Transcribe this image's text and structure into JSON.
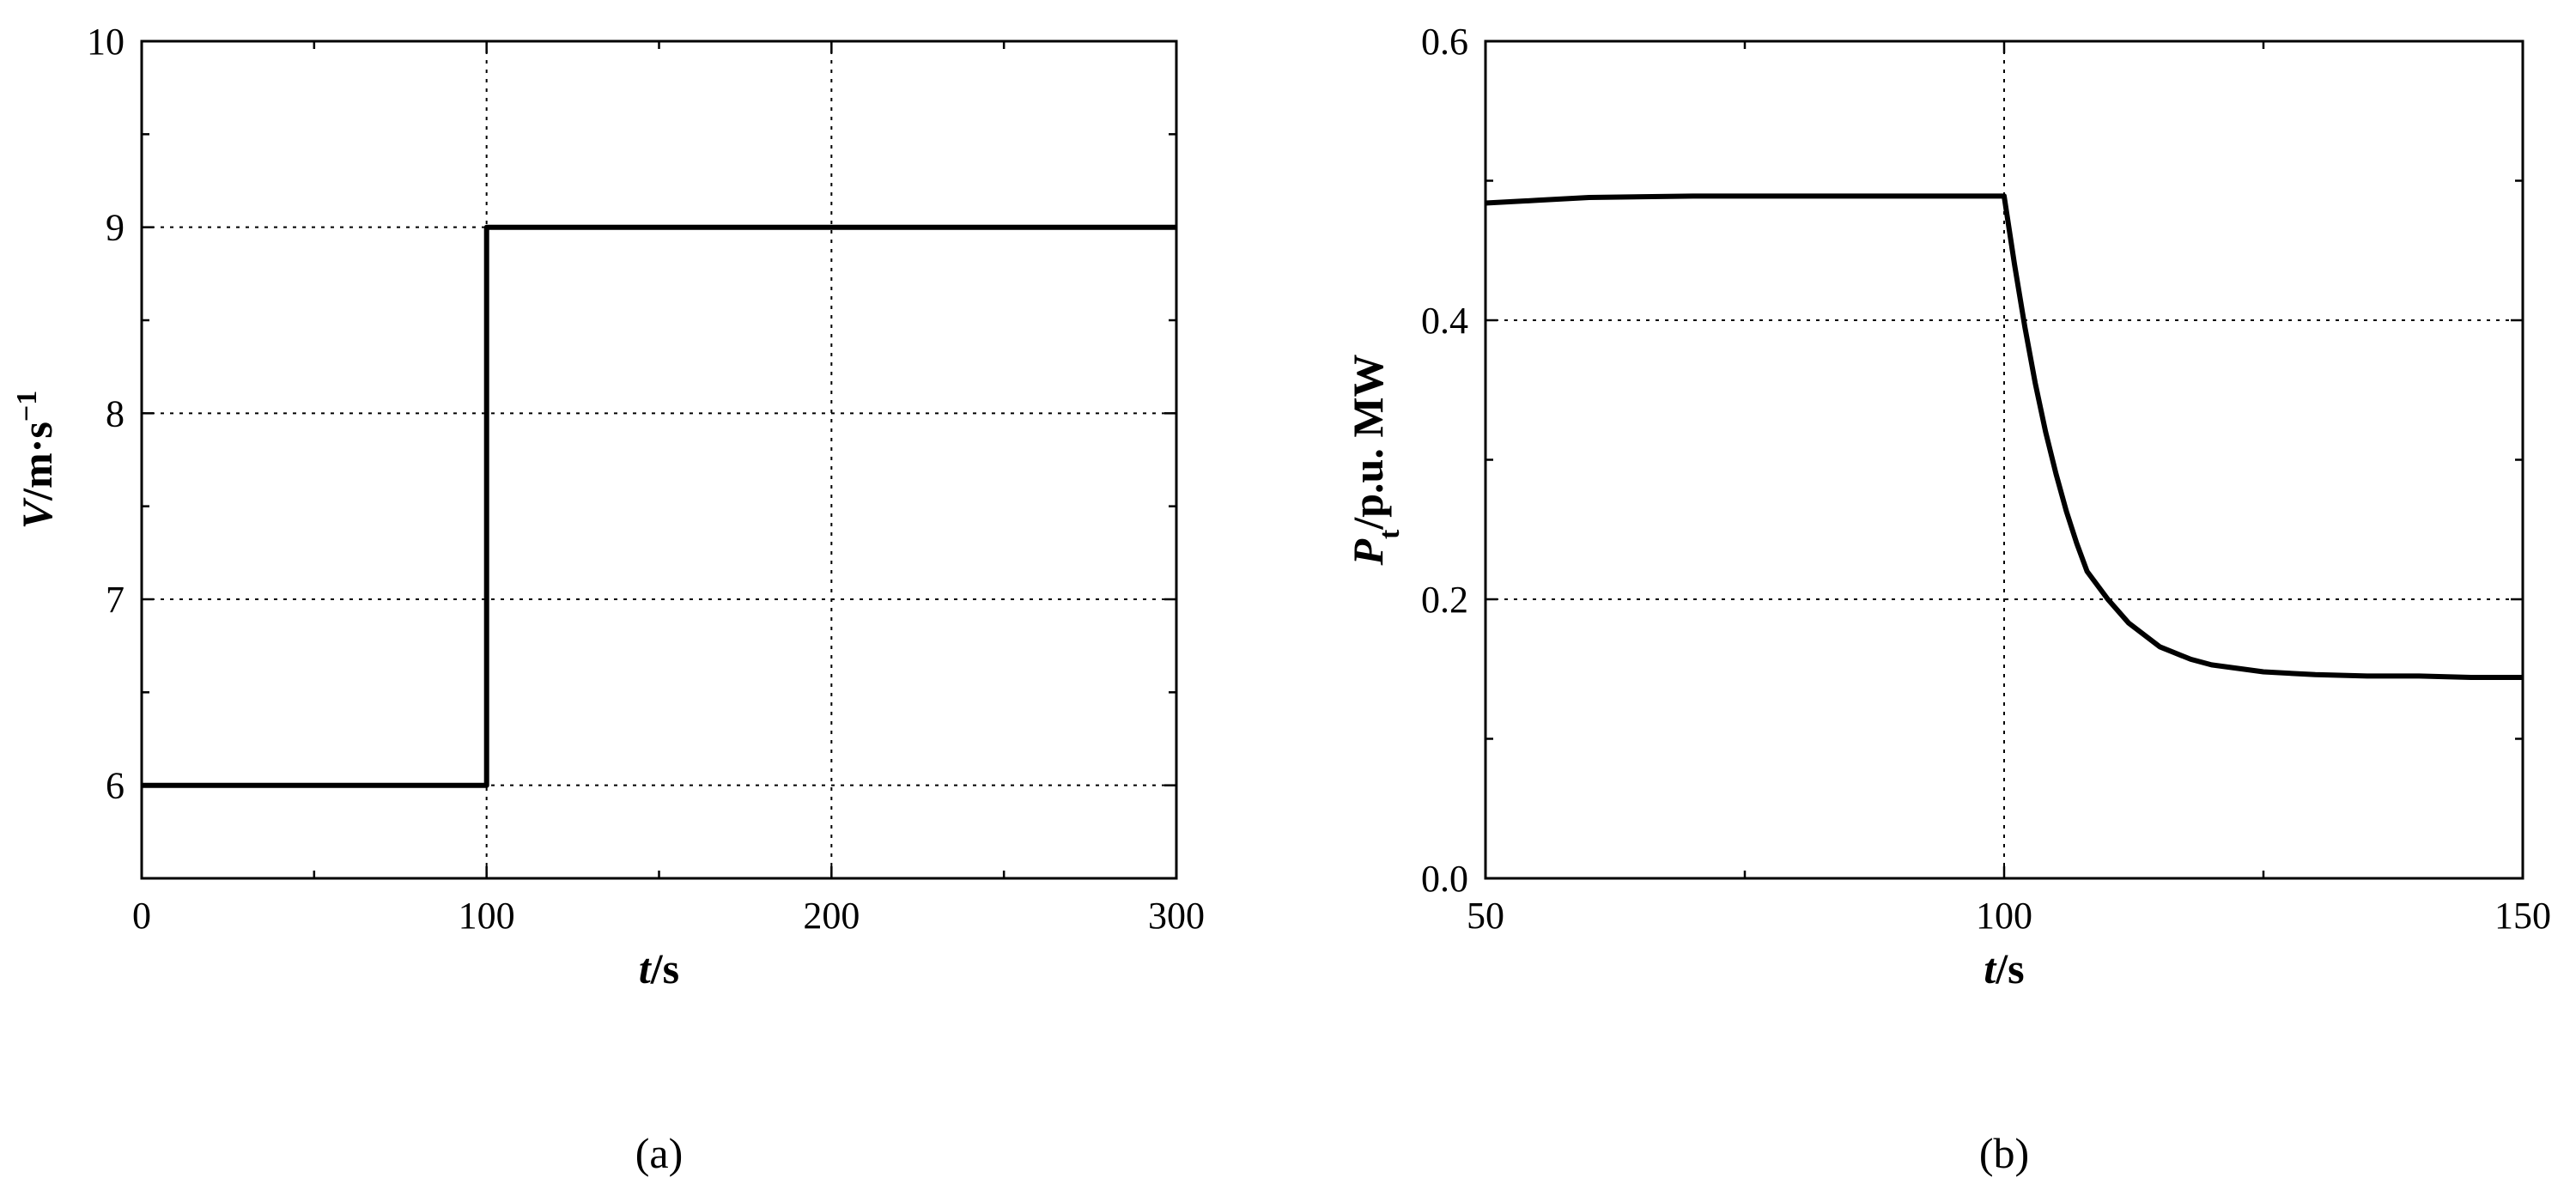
{
  "chart_data": [
    {
      "type": "line",
      "panel_label": "(a)",
      "xlabel": "t/s",
      "ylabel": "V/m·s⁻¹",
      "xlim": [
        0,
        300
      ],
      "ylim": [
        5.5,
        10
      ],
      "xticks": [
        0,
        100,
        200,
        300
      ],
      "yticks": [
        6,
        7,
        8,
        9,
        10
      ],
      "xtick_labels": [
        "0",
        "100",
        "200",
        "300"
      ],
      "ytick_labels": [
        "6",
        "7",
        "8",
        "9",
        "10"
      ],
      "grid": true,
      "series": [
        {
          "x": [
            0,
            100,
            100,
            300
          ],
          "y": [
            6,
            6,
            9,
            9
          ]
        }
      ]
    },
    {
      "type": "line",
      "panel_label": "(b)",
      "xlabel": "t/s",
      "ylabel": "Pt/p.u. MW",
      "xlim": [
        50,
        150
      ],
      "ylim": [
        0,
        0.6
      ],
      "xticks": [
        50,
        100,
        150
      ],
      "yticks": [
        0.0,
        0.2,
        0.4,
        0.6
      ],
      "xtick_labels": [
        "50",
        "100",
        "150"
      ],
      "ytick_labels": [
        "0.0",
        "0.2",
        "0.4",
        "0.6"
      ],
      "grid": true,
      "series": [
        {
          "x": [
            50,
            55,
            60,
            70,
            80,
            90,
            100,
            101,
            102,
            103,
            104,
            105,
            106,
            107,
            108,
            110,
            112,
            115,
            118,
            120,
            125,
            130,
            135,
            140,
            145,
            150
          ],
          "y": [
            0.484,
            0.486,
            0.488,
            0.489,
            0.489,
            0.489,
            0.489,
            0.44,
            0.395,
            0.355,
            0.32,
            0.29,
            0.263,
            0.24,
            0.22,
            0.2,
            0.183,
            0.166,
            0.157,
            0.153,
            0.148,
            0.146,
            0.145,
            0.145,
            0.144,
            0.144
          ]
        }
      ]
    }
  ]
}
